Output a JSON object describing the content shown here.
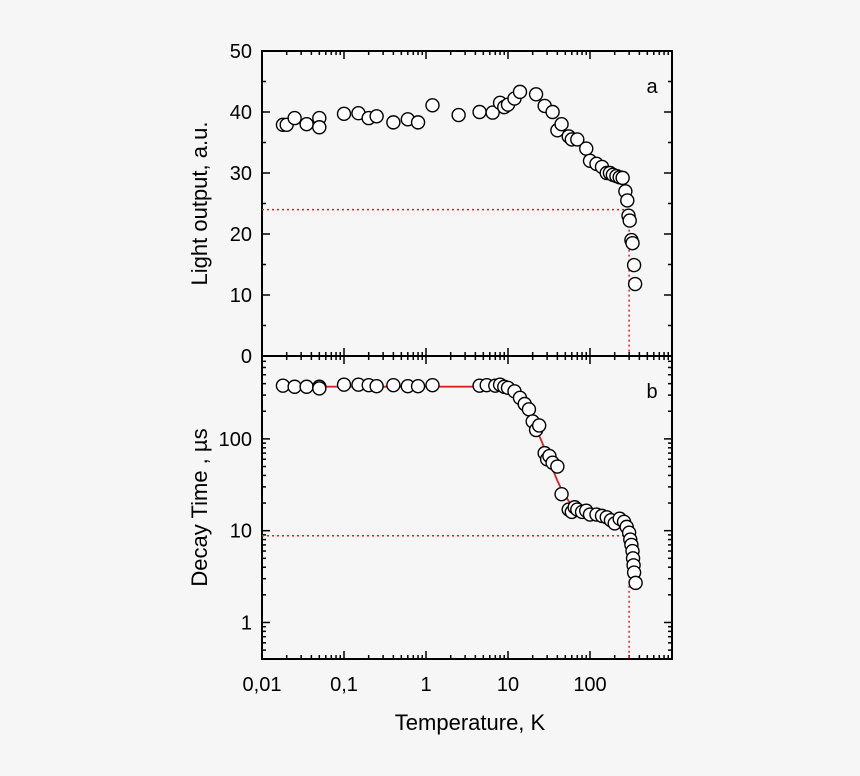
{
  "chart_data": [
    {
      "type": "scatter",
      "panel_label": "a",
      "xlabel": "Temperature, K",
      "ylabel": "Light output, a.u.",
      "x_scale": "log",
      "xlim": [
        0.01,
        1000
      ],
      "ylim": [
        0,
        50
      ],
      "x_ticks": [
        0.01,
        0.1,
        1,
        10,
        100
      ],
      "x_tick_labels": [
        "0,01",
        "0,1",
        "1",
        "10",
        "100"
      ],
      "y_ticks": [
        0,
        10,
        20,
        30,
        40,
        50
      ],
      "y_tick_labels": [
        "0",
        "10",
        "20",
        "30",
        "40",
        "50"
      ],
      "grid": false,
      "marker": "open-circle",
      "series": [
        {
          "points": [
            [
              0.018,
              37.9
            ],
            [
              0.02,
              37.9
            ],
            [
              0.025,
              39.0
            ],
            [
              0.035,
              38.0
            ],
            [
              0.05,
              39.0
            ],
            [
              0.05,
              37.5
            ],
            [
              0.1,
              39.7
            ],
            [
              0.15,
              39.8
            ],
            [
              0.2,
              39.0
            ],
            [
              0.25,
              39.3
            ],
            [
              0.4,
              38.3
            ],
            [
              0.6,
              38.8
            ],
            [
              0.8,
              38.3
            ],
            [
              1.2,
              41.1
            ],
            [
              2.5,
              39.5
            ],
            [
              4.5,
              40.0
            ],
            [
              6.5,
              39.9
            ],
            [
              8,
              41.5
            ],
            [
              9,
              40.8
            ],
            [
              10,
              41.2
            ],
            [
              12,
              42.2
            ],
            [
              14,
              43.3
            ],
            [
              22,
              42.9
            ],
            [
              28,
              41.0
            ],
            [
              35,
              40.0
            ],
            [
              40,
              37.0
            ],
            [
              45,
              38.0
            ],
            [
              55,
              36.0
            ],
            [
              60,
              35.5
            ],
            [
              70,
              35.5
            ],
            [
              90,
              34.0
            ],
            [
              100,
              32.0
            ],
            [
              120,
              31.5
            ],
            [
              140,
              31.0
            ],
            [
              160,
              30.0
            ],
            [
              175,
              30.0
            ],
            [
              190,
              29.7
            ],
            [
              210,
              29.5
            ],
            [
              230,
              29.3
            ],
            [
              250,
              29.2
            ],
            [
              270,
              27.0
            ],
            [
              285,
              25.5
            ],
            [
              295,
              23.0
            ],
            [
              305,
              22.2
            ],
            [
              320,
              19.0
            ],
            [
              330,
              18.5
            ],
            [
              345,
              14.9
            ],
            [
              355,
              11.8
            ]
          ]
        }
      ],
      "reference_lines": [
        {
          "style": "dotted",
          "color": "#e02020",
          "from": [
            0.01,
            24
          ],
          "to": [
            300,
            24
          ]
        },
        {
          "style": "dotted",
          "color": "#e02020",
          "from": [
            300,
            24
          ],
          "to": [
            300,
            0
          ]
        }
      ]
    },
    {
      "type": "scatter",
      "panel_label": "b",
      "xlabel": "Temperature, K",
      "ylabel": "Decay Time , µs",
      "x_scale": "log",
      "y_scale": "log",
      "xlim": [
        0.01,
        1000
      ],
      "ylim": [
        0.4,
        800
      ],
      "x_ticks": [
        0.01,
        0.1,
        1,
        10,
        100
      ],
      "x_tick_labels": [
        "0,01",
        "0,1",
        "1",
        "10",
        "100"
      ],
      "y_ticks": [
        1,
        10,
        100
      ],
      "y_tick_labels": [
        "1",
        "10",
        "100"
      ],
      "grid": false,
      "marker": "open-circle",
      "series": [
        {
          "points": [
            [
              0.018,
              380
            ],
            [
              0.025,
              370
            ],
            [
              0.035,
              370
            ],
            [
              0.05,
              370
            ],
            [
              0.05,
              355
            ],
            [
              0.1,
              390
            ],
            [
              0.15,
              390
            ],
            [
              0.2,
              385
            ],
            [
              0.25,
              375
            ],
            [
              0.4,
              385
            ],
            [
              0.6,
              375
            ],
            [
              0.8,
              375
            ],
            [
              1.2,
              385
            ],
            [
              4.5,
              380
            ],
            [
              5.5,
              385
            ],
            [
              7,
              380
            ],
            [
              8,
              390
            ],
            [
              9,
              370
            ],
            [
              10,
              360
            ],
            [
              12,
              330
            ],
            [
              14,
              280
            ],
            [
              16,
              240
            ],
            [
              18,
              210
            ],
            [
              20,
              155
            ],
            [
              22,
              125
            ],
            [
              24,
              140
            ],
            [
              28,
              70
            ],
            [
              30,
              60
            ],
            [
              32,
              65
            ],
            [
              35,
              55
            ],
            [
              40,
              50
            ],
            [
              45,
              25
            ],
            [
              55,
              17
            ],
            [
              60,
              16
            ],
            [
              65,
              18
            ],
            [
              70,
              17
            ],
            [
              80,
              16
            ],
            [
              90,
              16.5
            ],
            [
              100,
              15
            ],
            [
              120,
              15
            ],
            [
              140,
              14.5
            ],
            [
              160,
              14
            ],
            [
              180,
              13
            ],
            [
              200,
              12
            ],
            [
              230,
              13.5
            ],
            [
              260,
              12.5
            ],
            [
              280,
              11
            ],
            [
              300,
              9.5
            ],
            [
              310,
              8
            ],
            [
              320,
              7
            ],
            [
              330,
              6
            ],
            [
              335,
              5
            ],
            [
              340,
              4.2
            ],
            [
              345,
              3.5
            ],
            [
              360,
              2.7
            ]
          ]
        },
        {
          "style": "line",
          "color": "#e02020",
          "points": [
            [
              0.018,
              370
            ],
            [
              0.1,
              370
            ],
            [
              1,
              370
            ],
            [
              8,
              370
            ],
            [
              9,
              360
            ],
            [
              10,
              345
            ],
            [
              11,
              330
            ],
            [
              12,
              305
            ],
            [
              14,
              265
            ],
            [
              16,
              220
            ],
            [
              18,
              180
            ],
            [
              20,
              150
            ],
            [
              22,
              128
            ],
            [
              25,
              100
            ],
            [
              28,
              78
            ],
            [
              32,
              58
            ],
            [
              36,
              44
            ],
            [
              40,
              35
            ],
            [
              45,
              28
            ],
            [
              50,
              24
            ],
            [
              55,
              21
            ],
            [
              60,
              19.5
            ],
            [
              70,
              17.5
            ],
            [
              80,
              16.5
            ],
            [
              100,
              15.5
            ],
            [
              130,
              14.5
            ],
            [
              160,
              13.8
            ],
            [
              200,
              13
            ],
            [
              240,
              12
            ],
            [
              270,
              11
            ],
            [
              290,
              9.5
            ],
            [
              300,
              8.5
            ],
            [
              310,
              7
            ],
            [
              320,
              5.5
            ],
            [
              330,
              4.5
            ],
            [
              345,
              3.4
            ],
            [
              360,
              2.8
            ]
          ]
        }
      ],
      "reference_lines": [
        {
          "style": "dotted",
          "color": "#e02020",
          "from": [
            0.01,
            8.8
          ],
          "to": [
            300,
            8.8
          ]
        },
        {
          "style": "dotted",
          "color": "#e02020",
          "from": [
            300,
            8.8
          ],
          "to": [
            300,
            0.4
          ]
        }
      ]
    }
  ]
}
